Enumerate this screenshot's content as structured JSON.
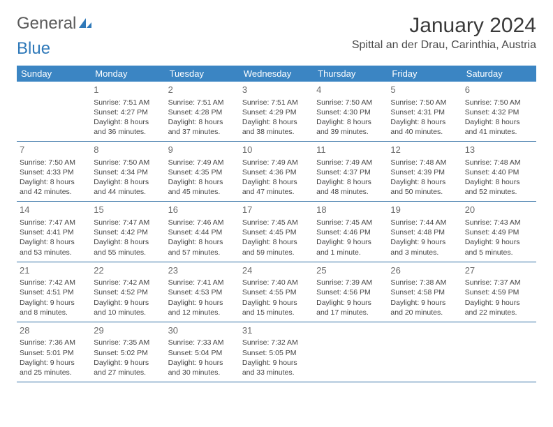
{
  "brand": {
    "word1": "General",
    "word2": "Blue"
  },
  "title": "January 2024",
  "location": "Spittal an der Drau, Carinthia, Austria",
  "header_bg": "#3b85c3",
  "rule_color": "#2f6ea3",
  "weekdays": [
    "Sunday",
    "Monday",
    "Tuesday",
    "Wednesday",
    "Thursday",
    "Friday",
    "Saturday"
  ],
  "weeks": [
    [
      null,
      {
        "n": "1",
        "sr": "Sunrise: 7:51 AM",
        "ss": "Sunset: 4:27 PM",
        "d1": "Daylight: 8 hours",
        "d2": "and 36 minutes."
      },
      {
        "n": "2",
        "sr": "Sunrise: 7:51 AM",
        "ss": "Sunset: 4:28 PM",
        "d1": "Daylight: 8 hours",
        "d2": "and 37 minutes."
      },
      {
        "n": "3",
        "sr": "Sunrise: 7:51 AM",
        "ss": "Sunset: 4:29 PM",
        "d1": "Daylight: 8 hours",
        "d2": "and 38 minutes."
      },
      {
        "n": "4",
        "sr": "Sunrise: 7:50 AM",
        "ss": "Sunset: 4:30 PM",
        "d1": "Daylight: 8 hours",
        "d2": "and 39 minutes."
      },
      {
        "n": "5",
        "sr": "Sunrise: 7:50 AM",
        "ss": "Sunset: 4:31 PM",
        "d1": "Daylight: 8 hours",
        "d2": "and 40 minutes."
      },
      {
        "n": "6",
        "sr": "Sunrise: 7:50 AM",
        "ss": "Sunset: 4:32 PM",
        "d1": "Daylight: 8 hours",
        "d2": "and 41 minutes."
      }
    ],
    [
      {
        "n": "7",
        "sr": "Sunrise: 7:50 AM",
        "ss": "Sunset: 4:33 PM",
        "d1": "Daylight: 8 hours",
        "d2": "and 42 minutes."
      },
      {
        "n": "8",
        "sr": "Sunrise: 7:50 AM",
        "ss": "Sunset: 4:34 PM",
        "d1": "Daylight: 8 hours",
        "d2": "and 44 minutes."
      },
      {
        "n": "9",
        "sr": "Sunrise: 7:49 AM",
        "ss": "Sunset: 4:35 PM",
        "d1": "Daylight: 8 hours",
        "d2": "and 45 minutes."
      },
      {
        "n": "10",
        "sr": "Sunrise: 7:49 AM",
        "ss": "Sunset: 4:36 PM",
        "d1": "Daylight: 8 hours",
        "d2": "and 47 minutes."
      },
      {
        "n": "11",
        "sr": "Sunrise: 7:49 AM",
        "ss": "Sunset: 4:37 PM",
        "d1": "Daylight: 8 hours",
        "d2": "and 48 minutes."
      },
      {
        "n": "12",
        "sr": "Sunrise: 7:48 AM",
        "ss": "Sunset: 4:39 PM",
        "d1": "Daylight: 8 hours",
        "d2": "and 50 minutes."
      },
      {
        "n": "13",
        "sr": "Sunrise: 7:48 AM",
        "ss": "Sunset: 4:40 PM",
        "d1": "Daylight: 8 hours",
        "d2": "and 52 minutes."
      }
    ],
    [
      {
        "n": "14",
        "sr": "Sunrise: 7:47 AM",
        "ss": "Sunset: 4:41 PM",
        "d1": "Daylight: 8 hours",
        "d2": "and 53 minutes."
      },
      {
        "n": "15",
        "sr": "Sunrise: 7:47 AM",
        "ss": "Sunset: 4:42 PM",
        "d1": "Daylight: 8 hours",
        "d2": "and 55 minutes."
      },
      {
        "n": "16",
        "sr": "Sunrise: 7:46 AM",
        "ss": "Sunset: 4:44 PM",
        "d1": "Daylight: 8 hours",
        "d2": "and 57 minutes."
      },
      {
        "n": "17",
        "sr": "Sunrise: 7:45 AM",
        "ss": "Sunset: 4:45 PM",
        "d1": "Daylight: 8 hours",
        "d2": "and 59 minutes."
      },
      {
        "n": "18",
        "sr": "Sunrise: 7:45 AM",
        "ss": "Sunset: 4:46 PM",
        "d1": "Daylight: 9 hours",
        "d2": "and 1 minute."
      },
      {
        "n": "19",
        "sr": "Sunrise: 7:44 AM",
        "ss": "Sunset: 4:48 PM",
        "d1": "Daylight: 9 hours",
        "d2": "and 3 minutes."
      },
      {
        "n": "20",
        "sr": "Sunrise: 7:43 AM",
        "ss": "Sunset: 4:49 PM",
        "d1": "Daylight: 9 hours",
        "d2": "and 5 minutes."
      }
    ],
    [
      {
        "n": "21",
        "sr": "Sunrise: 7:42 AM",
        "ss": "Sunset: 4:51 PM",
        "d1": "Daylight: 9 hours",
        "d2": "and 8 minutes."
      },
      {
        "n": "22",
        "sr": "Sunrise: 7:42 AM",
        "ss": "Sunset: 4:52 PM",
        "d1": "Daylight: 9 hours",
        "d2": "and 10 minutes."
      },
      {
        "n": "23",
        "sr": "Sunrise: 7:41 AM",
        "ss": "Sunset: 4:53 PM",
        "d1": "Daylight: 9 hours",
        "d2": "and 12 minutes."
      },
      {
        "n": "24",
        "sr": "Sunrise: 7:40 AM",
        "ss": "Sunset: 4:55 PM",
        "d1": "Daylight: 9 hours",
        "d2": "and 15 minutes."
      },
      {
        "n": "25",
        "sr": "Sunrise: 7:39 AM",
        "ss": "Sunset: 4:56 PM",
        "d1": "Daylight: 9 hours",
        "d2": "and 17 minutes."
      },
      {
        "n": "26",
        "sr": "Sunrise: 7:38 AM",
        "ss": "Sunset: 4:58 PM",
        "d1": "Daylight: 9 hours",
        "d2": "and 20 minutes."
      },
      {
        "n": "27",
        "sr": "Sunrise: 7:37 AM",
        "ss": "Sunset: 4:59 PM",
        "d1": "Daylight: 9 hours",
        "d2": "and 22 minutes."
      }
    ],
    [
      {
        "n": "28",
        "sr": "Sunrise: 7:36 AM",
        "ss": "Sunset: 5:01 PM",
        "d1": "Daylight: 9 hours",
        "d2": "and 25 minutes."
      },
      {
        "n": "29",
        "sr": "Sunrise: 7:35 AM",
        "ss": "Sunset: 5:02 PM",
        "d1": "Daylight: 9 hours",
        "d2": "and 27 minutes."
      },
      {
        "n": "30",
        "sr": "Sunrise: 7:33 AM",
        "ss": "Sunset: 5:04 PM",
        "d1": "Daylight: 9 hours",
        "d2": "and 30 minutes."
      },
      {
        "n": "31",
        "sr": "Sunrise: 7:32 AM",
        "ss": "Sunset: 5:05 PM",
        "d1": "Daylight: 9 hours",
        "d2": "and 33 minutes."
      },
      null,
      null,
      null
    ]
  ]
}
